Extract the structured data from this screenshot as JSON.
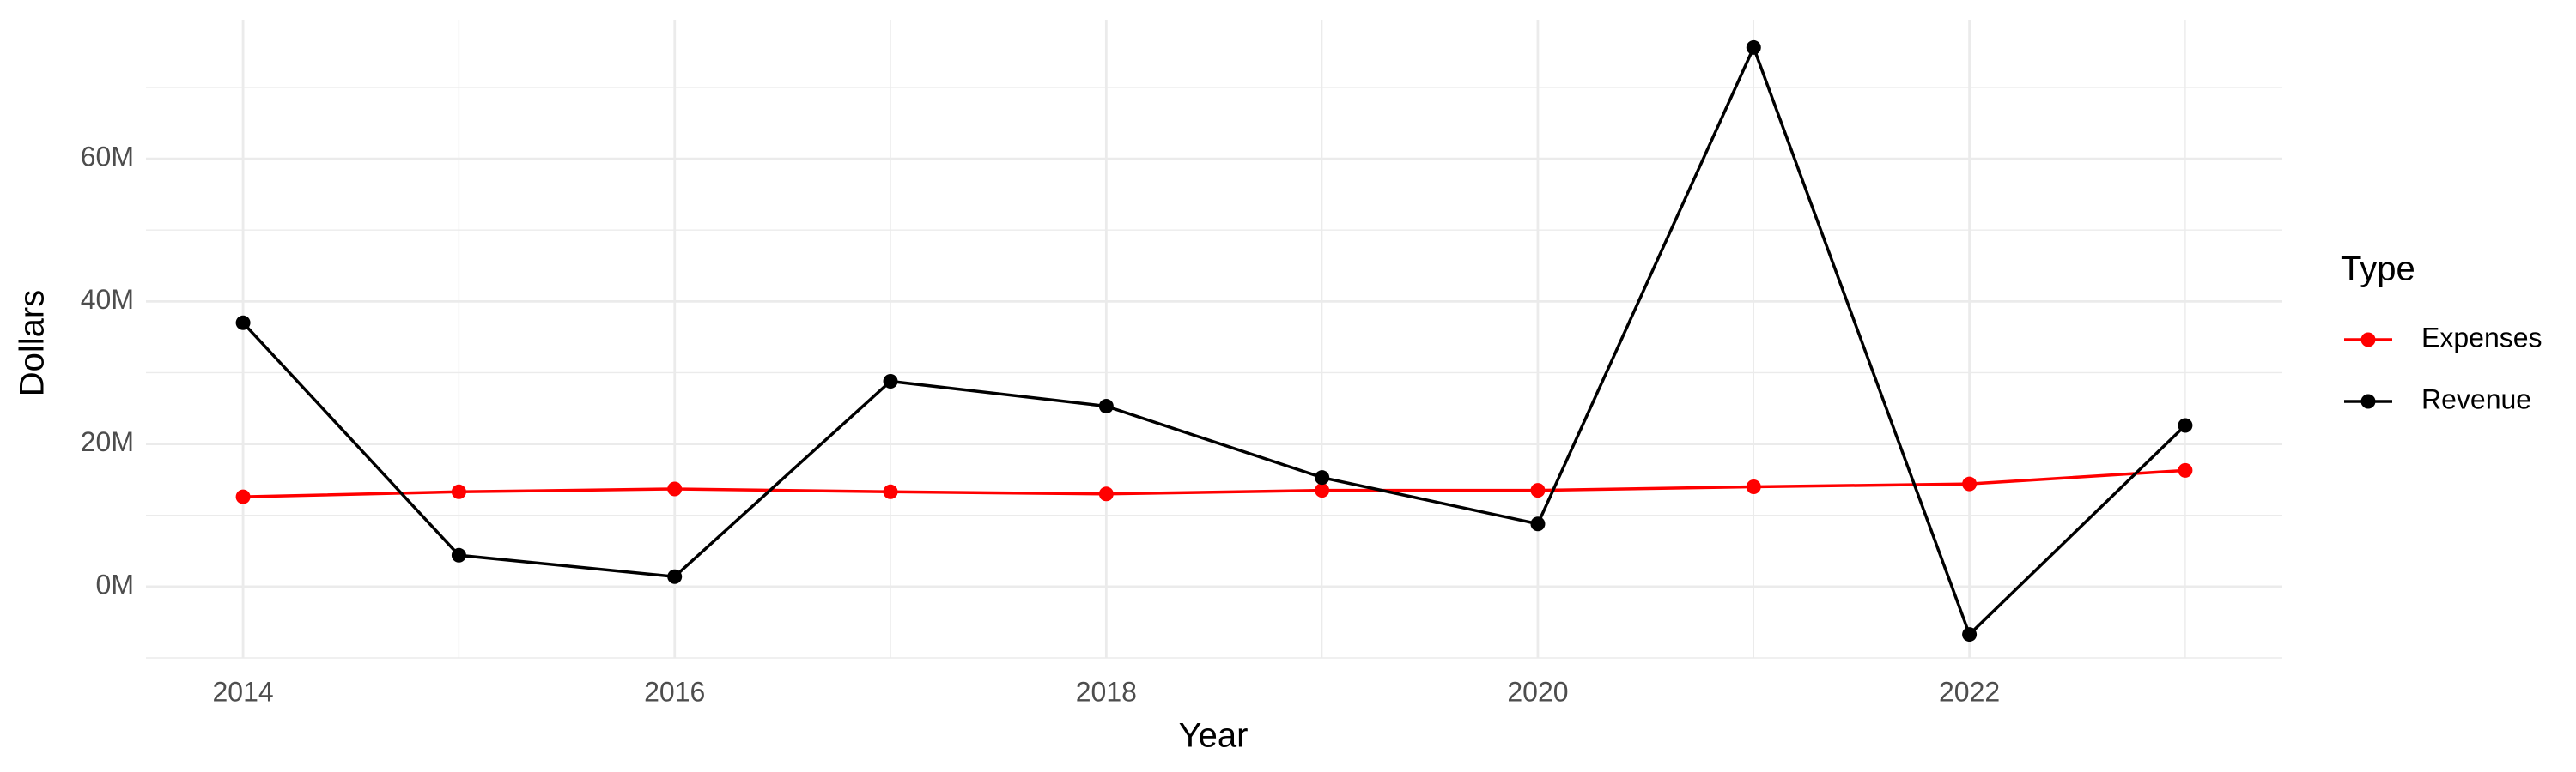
{
  "chart_data": {
    "type": "line",
    "x_label": "Year",
    "y_label": "Dollars",
    "legend_title": "Type",
    "x": [
      2014,
      2015,
      2016,
      2017,
      2018,
      2019,
      2020,
      2021,
      2022,
      2023
    ],
    "series": [
      {
        "name": "Expenses",
        "color": "#ff0000",
        "values": [
          12600000,
          13300000,
          13700000,
          13300000,
          13000000,
          13500000,
          13500000,
          14000000,
          14400000,
          16300000
        ]
      },
      {
        "name": "Revenue",
        "color": "#000000",
        "values": [
          37000000,
          4400000,
          1400000,
          28800000,
          25300000,
          15300000,
          8800000,
          75600000,
          -6700000,
          22600000
        ]
      }
    ],
    "xlim": [
      2013.55,
      2023.45
    ],
    "xticks": [
      2014,
      2016,
      2018,
      2020,
      2022
    ],
    "ylim": [
      -10000000,
      79500000
    ],
    "yticks": [
      {
        "value": 0,
        "label": "0M"
      },
      {
        "value": 20000000,
        "label": "20M"
      },
      {
        "value": 40000000,
        "label": "40M"
      },
      {
        "value": 60000000,
        "label": "60M"
      }
    ],
    "grid": true,
    "legend": "right"
  }
}
